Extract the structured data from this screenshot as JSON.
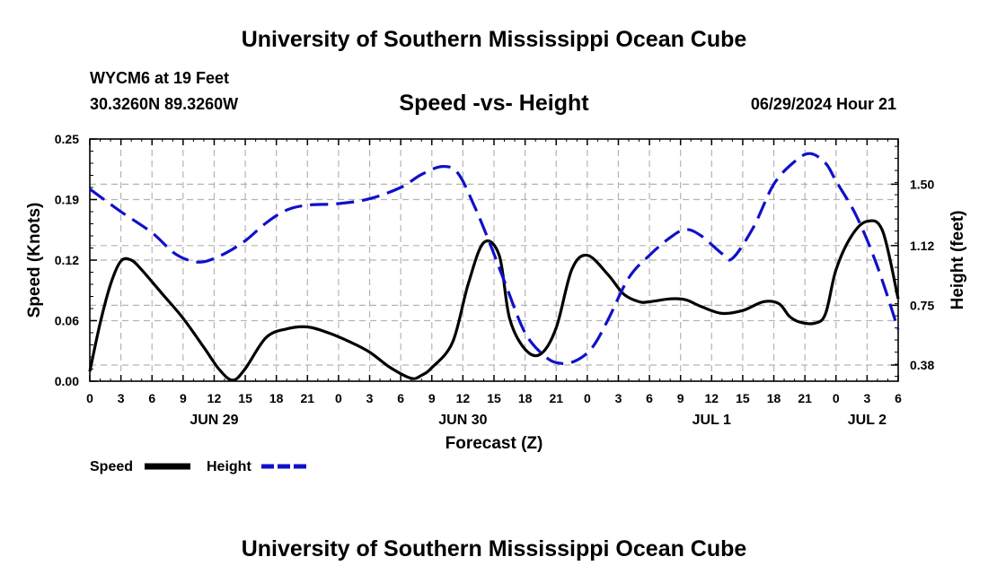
{
  "header": {
    "title": "University of Southern Mississippi Ocean Cube",
    "station": "WYCM6 at 19 Feet",
    "coordinates": "30.3260N  89.3260W",
    "subtitle": "Speed -vs- Height",
    "datetime": "06/29/2024 Hour 21"
  },
  "footer": {
    "title": "University of Southern Mississippi Ocean Cube"
  },
  "chart_data": {
    "type": "line",
    "title": "Speed -vs- Height",
    "xlabel": "Forecast (Z)",
    "ylabel_left": "Speed (Knots)",
    "ylabel_right": "Height (feet)",
    "x_unit": "forecast hours from Jun 29 00Z",
    "xlim": [
      0,
      78
    ],
    "ylim_left": [
      0,
      0.25
    ],
    "ylim_right": [
      0.28,
      1.78
    ],
    "x_ticks": [
      0,
      3,
      6,
      9,
      12,
      15,
      18,
      21,
      24,
      27,
      30,
      33,
      36,
      39,
      42,
      45,
      48,
      51,
      54,
      57,
      60,
      63,
      66,
      69,
      72,
      75,
      78
    ],
    "x_tick_labels": [
      "0",
      "3",
      "6",
      "9",
      "12",
      "15",
      "18",
      "21",
      "0",
      "3",
      "6",
      "9",
      "12",
      "15",
      "18",
      "21",
      "0",
      "3",
      "6",
      "9",
      "12",
      "15",
      "18",
      "21",
      "0",
      "3",
      "6"
    ],
    "date_labels": [
      {
        "label": "JUN 29",
        "x": 12
      },
      {
        "label": "JUN 30",
        "x": 36
      },
      {
        "label": "JUL 1",
        "x": 60
      },
      {
        "label": "JUL 2",
        "x": 75
      }
    ],
    "left_ticks": [
      {
        "value": 0,
        "label": "0.00"
      },
      {
        "value": 0.0625,
        "label": "0.06"
      },
      {
        "value": 0.125,
        "label": "0.12"
      },
      {
        "value": 0.1875,
        "label": "0.19"
      },
      {
        "value": 0.25,
        "label": "0.25"
      }
    ],
    "right_ticks": [
      {
        "value": 0.38,
        "label": "0.38"
      },
      {
        "value": 0.75,
        "label": "0.75"
      },
      {
        "value": 1.12,
        "label": "1.12"
      },
      {
        "value": 1.5,
        "label": "1.50"
      }
    ],
    "grid": true,
    "legend_position": "bottom-left",
    "series": [
      {
        "name": "Speed",
        "axis": "left",
        "color": "#000000",
        "dash": "solid",
        "x": [
          0,
          1,
          2,
          3,
          4,
          5,
          7,
          9,
          11,
          12.5,
          13.8,
          15,
          17,
          19,
          21,
          23,
          25,
          27,
          29,
          31,
          32,
          33,
          35,
          36.5,
          38,
          39.5,
          40.5,
          42,
          43.5,
          45,
          46.5,
          48,
          50,
          51.5,
          53,
          54,
          56,
          57.5,
          59,
          61,
          63,
          65,
          66.5,
          67.5,
          68.5,
          70,
          71,
          72,
          73.5,
          75,
          76.5,
          78
        ],
        "values": [
          0.01,
          0.06,
          0.1,
          0.124,
          0.125,
          0.115,
          0.09,
          0.065,
          0.035,
          0.012,
          0.001,
          0.013,
          0.045,
          0.054,
          0.056,
          0.05,
          0.041,
          0.03,
          0.014,
          0.003,
          0.006,
          0.014,
          0.04,
          0.1,
          0.143,
          0.13,
          0.065,
          0.033,
          0.028,
          0.055,
          0.115,
          0.13,
          0.11,
          0.09,
          0.082,
          0.082,
          0.085,
          0.084,
          0.077,
          0.07,
          0.073,
          0.082,
          0.08,
          0.067,
          0.061,
          0.06,
          0.07,
          0.115,
          0.15,
          0.165,
          0.155,
          0.085
        ]
      },
      {
        "name": "Height",
        "axis": "right",
        "color": "#1010c8",
        "dash": "dashed",
        "x": [
          0,
          3,
          6,
          8,
          9.5,
          11,
          13,
          15,
          17,
          19,
          21,
          24,
          27,
          30,
          32,
          34,
          35.5,
          37,
          38.5,
          40,
          42,
          44,
          45.5,
          47,
          48.5,
          50,
          52,
          54,
          56,
          57.5,
          59,
          61,
          62,
          64,
          66,
          68,
          69.5,
          71,
          72,
          74,
          76,
          78
        ],
        "values": [
          1.47,
          1.33,
          1.2,
          1.08,
          1.03,
          1.02,
          1.07,
          1.15,
          1.26,
          1.34,
          1.37,
          1.38,
          1.41,
          1.48,
          1.56,
          1.61,
          1.57,
          1.38,
          1.15,
          0.9,
          0.58,
          0.43,
          0.39,
          0.41,
          0.49,
          0.66,
          0.92,
          1.06,
          1.17,
          1.22,
          1.18,
          1.07,
          1.04,
          1.23,
          1.5,
          1.64,
          1.69,
          1.63,
          1.52,
          1.3,
          0.99,
          0.6
        ]
      }
    ]
  }
}
